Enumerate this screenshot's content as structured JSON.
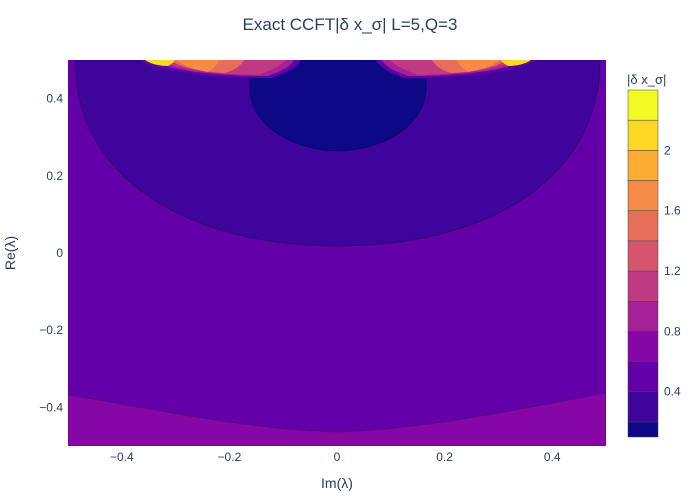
{
  "chart_data": {
    "type": "contour",
    "title": "Exact CCFT|δ x_σ| L=5,Q=3",
    "xlabel": "Im(λ)",
    "ylabel": "Re(λ)",
    "xlim": [
      -0.5,
      0.5
    ],
    "ylim": [
      -0.5,
      0.5
    ],
    "x_ticks": [
      "−0.4",
      "−0.2",
      "0",
      "0.2",
      "0.4"
    ],
    "x_tick_values": [
      -0.4,
      -0.2,
      0,
      0.2,
      0.4
    ],
    "y_ticks": [
      "−0.4",
      "−0.2",
      "0",
      "0.2",
      "0.4"
    ],
    "y_tick_values": [
      -0.4,
      -0.2,
      0,
      0.2,
      0.4
    ],
    "colorbar": {
      "title": "|δ x_σ|",
      "range": [
        0.1,
        2.4
      ],
      "ticks": [
        "0.4",
        "0.8",
        "1.2",
        "1.6",
        "2"
      ],
      "tick_values": [
        0.4,
        0.8,
        1.2,
        1.6,
        2.0
      ],
      "levels": [
        0.2,
        0.4,
        0.6,
        0.8,
        1.0,
        1.2,
        1.4,
        1.6,
        1.8,
        2.0,
        2.2
      ],
      "colors": [
        "#0d0887",
        "#3e049c",
        "#6300a7",
        "#8606a6",
        "#a62098",
        "#c03a83",
        "#d5546e",
        "#e76f5a",
        "#f58b47",
        "#fdac33",
        "#fad824",
        "#f0f921"
      ]
    },
    "grid": false,
    "legend": "colorbar-right"
  }
}
